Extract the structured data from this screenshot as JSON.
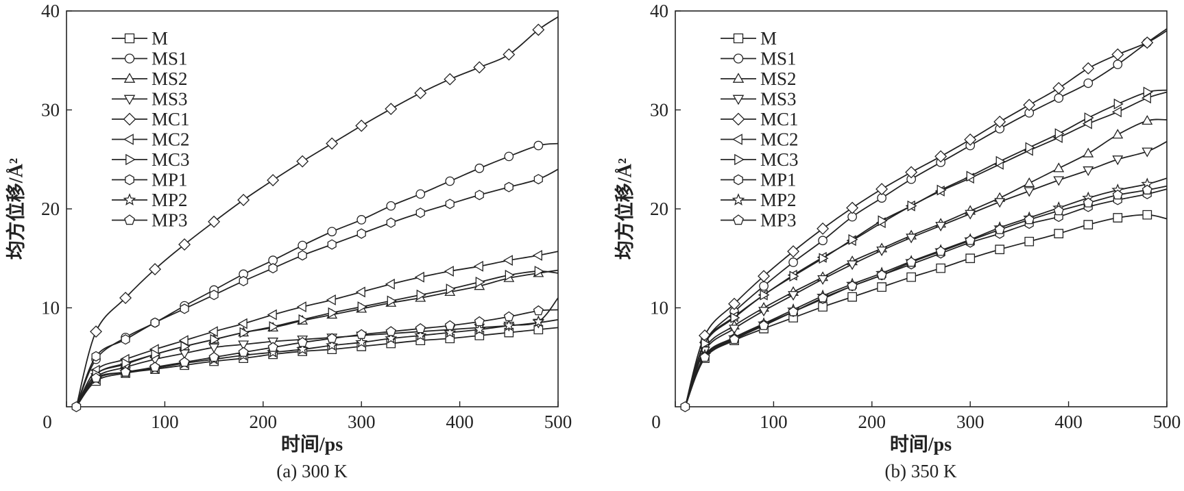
{
  "chart_data": [
    {
      "type": "line",
      "caption": "(a) 300 K",
      "xlabel": "时间/ps",
      "ylabel": "均方位移/Å²",
      "xlim": [
        0,
        500
      ],
      "ylim": [
        0,
        40
      ],
      "xticks": [
        0,
        100,
        200,
        300,
        400,
        500
      ],
      "yticks": [
        10,
        20,
        30,
        40
      ],
      "legend_position": "top-left",
      "x": [
        10,
        30,
        60,
        90,
        120,
        150,
        180,
        210,
        240,
        270,
        300,
        330,
        360,
        390,
        420,
        450,
        480,
        500
      ],
      "series": [
        {
          "name": "M",
          "marker": "square",
          "values": [
            0,
            2.6,
            3.4,
            3.8,
            4.2,
            4.6,
            4.9,
            5.3,
            5.6,
            5.8,
            6.1,
            6.4,
            6.7,
            6.9,
            7.2,
            7.5,
            7.8,
            8.0
          ]
        },
        {
          "name": "MS1",
          "marker": "circle",
          "values": [
            0,
            4.8,
            7.0,
            8.5,
            10.2,
            11.8,
            13.4,
            14.8,
            16.3,
            17.7,
            18.9,
            20.3,
            21.5,
            22.8,
            24.1,
            25.3,
            26.4,
            26.6
          ]
        },
        {
          "name": "MS2",
          "marker": "triangle-up",
          "values": [
            0,
            3.3,
            4.3,
            5.3,
            6.1,
            6.8,
            7.5,
            8.0,
            8.7,
            9.3,
            9.9,
            10.5,
            11.0,
            11.6,
            12.2,
            13.0,
            13.5,
            13.8
          ]
        },
        {
          "name": "MS3",
          "marker": "triangle-down",
          "values": [
            0,
            3.0,
            4.0,
            4.8,
            5.4,
            6.0,
            6.3,
            6.6,
            6.8,
            7.0,
            7.2,
            7.4,
            7.6,
            7.8,
            8.0,
            8.2,
            8.5,
            8.8
          ]
        },
        {
          "name": "MC1",
          "marker": "diamond",
          "values": [
            0,
            7.6,
            11.0,
            13.9,
            16.4,
            18.7,
            20.9,
            22.9,
            24.8,
            26.6,
            28.4,
            30.1,
            31.7,
            33.1,
            34.3,
            35.6,
            38.1,
            39.4
          ]
        },
        {
          "name": "MC2",
          "marker": "triangle-left",
          "values": [
            0,
            3.7,
            4.8,
            5.8,
            6.7,
            7.6,
            8.4,
            9.3,
            10.1,
            10.8,
            11.6,
            12.4,
            13.1,
            13.7,
            14.2,
            14.8,
            15.3,
            15.7
          ]
        },
        {
          "name": "MC3",
          "marker": "triangle-right",
          "values": [
            0,
            3.3,
            4.4,
            5.3,
            6.1,
            6.8,
            7.5,
            8.1,
            8.8,
            9.5,
            10.1,
            10.7,
            11.3,
            11.9,
            12.6,
            13.3,
            13.7,
            13.5
          ]
        },
        {
          "name": "MP1",
          "marker": "hexagon",
          "values": [
            0,
            5.1,
            6.8,
            8.5,
            9.9,
            11.3,
            12.7,
            14.0,
            15.3,
            16.4,
            17.5,
            18.6,
            19.6,
            20.5,
            21.4,
            22.2,
            23.0,
            24.0
          ]
        },
        {
          "name": "MP2",
          "marker": "star",
          "values": [
            0,
            2.8,
            3.5,
            3.9,
            4.4,
            4.8,
            5.2,
            5.5,
            5.8,
            6.2,
            6.5,
            6.9,
            7.2,
            7.5,
            7.8,
            8.2,
            8.6,
            11.0
          ]
        },
        {
          "name": "MP3",
          "marker": "pentagon",
          "values": [
            0,
            2.9,
            3.5,
            4.0,
            4.5,
            5.0,
            5.5,
            6.0,
            6.5,
            6.9,
            7.3,
            7.6,
            7.9,
            8.2,
            8.6,
            9.1,
            9.7,
            9.8
          ]
        }
      ]
    },
    {
      "type": "line",
      "caption": "(b) 350 K",
      "xlabel": "时间/ps",
      "ylabel": "均方位移/Å²",
      "xlim": [
        0,
        500
      ],
      "ylim": [
        0,
        40
      ],
      "xticks": [
        0,
        100,
        200,
        300,
        400,
        500
      ],
      "yticks": [
        10,
        20,
        30,
        40
      ],
      "legend_position": "top-left",
      "x": [
        10,
        30,
        60,
        90,
        120,
        150,
        180,
        210,
        240,
        270,
        300,
        330,
        360,
        390,
        420,
        450,
        480,
        500
      ],
      "series": [
        {
          "name": "M",
          "marker": "square",
          "values": [
            0,
            4.9,
            6.7,
            7.9,
            9.0,
            10.1,
            11.1,
            12.1,
            13.1,
            14.0,
            15.0,
            15.9,
            16.7,
            17.5,
            18.4,
            19.1,
            19.4,
            19.0
          ]
        },
        {
          "name": "MS1",
          "marker": "circle",
          "values": [
            0,
            6.5,
            9.6,
            12.2,
            14.6,
            16.8,
            19.2,
            21.1,
            23.0,
            24.7,
            26.4,
            28.1,
            29.7,
            31.2,
            32.7,
            34.6,
            36.8,
            38.2
          ]
        },
        {
          "name": "MS2",
          "marker": "triangle-up",
          "values": [
            0,
            5.9,
            8.2,
            10.0,
            11.6,
            13.1,
            14.7,
            16.0,
            17.3,
            18.5,
            19.8,
            21.1,
            22.6,
            24.1,
            25.6,
            27.5,
            28.9,
            29.0
          ]
        },
        {
          "name": "MS3",
          "marker": "triangle-down",
          "values": [
            0,
            5.7,
            7.9,
            9.7,
            11.3,
            12.9,
            14.4,
            15.8,
            17.1,
            18.3,
            19.5,
            20.7,
            21.8,
            22.9,
            23.9,
            25.0,
            25.8,
            26.8
          ]
        },
        {
          "name": "MC1",
          "marker": "diamond",
          "values": [
            0,
            7.2,
            10.4,
            13.2,
            15.7,
            18.0,
            20.1,
            22.0,
            23.7,
            25.3,
            27.0,
            28.8,
            30.5,
            32.2,
            34.2,
            35.6,
            36.8,
            38.0
          ]
        },
        {
          "name": "MC2",
          "marker": "triangle-left",
          "values": [
            0,
            6.5,
            9.1,
            11.3,
            13.3,
            15.1,
            16.8,
            18.6,
            20.3,
            21.8,
            23.1,
            24.5,
            25.9,
            27.2,
            28.6,
            29.8,
            31.2,
            31.8
          ]
        },
        {
          "name": "MC3",
          "marker": "triangle-right",
          "values": [
            0,
            6.4,
            9.0,
            11.3,
            13.2,
            15.0,
            16.9,
            18.8,
            20.3,
            21.9,
            23.3,
            24.8,
            26.2,
            27.6,
            29.2,
            30.6,
            31.8,
            32.0
          ]
        },
        {
          "name": "MP1",
          "marker": "hexagon",
          "values": [
            0,
            5.1,
            6.9,
            8.3,
            9.6,
            10.9,
            12.2,
            13.3,
            14.4,
            15.5,
            16.6,
            17.5,
            18.5,
            19.2,
            20.2,
            20.9,
            21.5,
            22.0
          ]
        },
        {
          "name": "MP2",
          "marker": "star",
          "values": [
            0,
            5.2,
            7.0,
            8.4,
            9.8,
            11.2,
            12.4,
            13.5,
            14.7,
            15.8,
            16.9,
            18.1,
            19.1,
            20.1,
            21.1,
            21.9,
            22.5,
            23.1
          ]
        },
        {
          "name": "MP3",
          "marker": "pentagon",
          "values": [
            0,
            5.0,
            6.8,
            8.2,
            9.6,
            11.0,
            12.2,
            13.3,
            14.6,
            15.7,
            16.8,
            17.9,
            18.9,
            19.8,
            20.6,
            21.4,
            21.9,
            22.3
          ]
        }
      ]
    }
  ]
}
